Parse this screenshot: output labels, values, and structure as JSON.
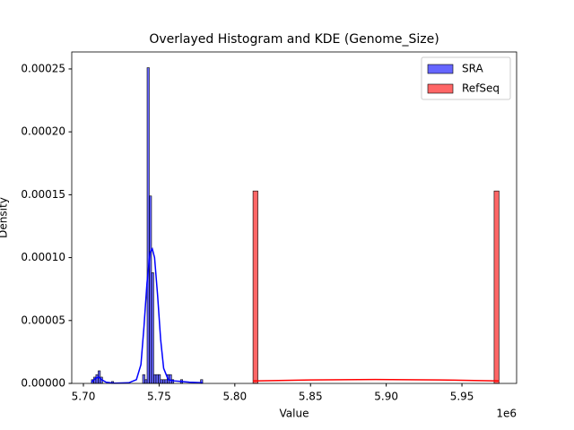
{
  "chart_data": {
    "type": "histogram",
    "title": "Overlayed Histogram and KDE (Genome_Size)",
    "xlabel": "Value",
    "ylabel": "Density",
    "x_offset_label": "1e6",
    "xlim": [
      5692300,
      5986100
    ],
    "ylim": [
      0,
      0.0002635
    ],
    "xticks": [
      {
        "value": 5700000,
        "label": "5.70"
      },
      {
        "value": 5750000,
        "label": "5.75"
      },
      {
        "value": 5800000,
        "label": "5.80"
      },
      {
        "value": 5850000,
        "label": "5.85"
      },
      {
        "value": 5900000,
        "label": "5.90"
      },
      {
        "value": 5950000,
        "label": "5.95"
      }
    ],
    "yticks": [
      {
        "value": 0,
        "label": "0.00000"
      },
      {
        "value": 5e-05,
        "label": "0.00005"
      },
      {
        "value": 0.0001,
        "label": "0.00010"
      },
      {
        "value": 0.00015,
        "label": "0.00015"
      },
      {
        "value": 0.0002,
        "label": "0.00020"
      },
      {
        "value": 0.00025,
        "label": "0.00025"
      }
    ],
    "legend": "upper right",
    "series": [
      {
        "name": "SRA",
        "color": "#0000ff",
        "bins": [
          5705300,
          5706770,
          5708240,
          5709710,
          5711180,
          5712650,
          5714120,
          5715590,
          5717060,
          5718530,
          5720000,
          5721470,
          5722940,
          5724410,
          5725880,
          5727350,
          5728820,
          5730290,
          5731760,
          5733230,
          5734700,
          5736170,
          5737640,
          5739110,
          5740580,
          5742050,
          5743520,
          5744990,
          5746460,
          5747930,
          5749400,
          5750870,
          5752340,
          5753810,
          5755280,
          5756750,
          5758220,
          5759690,
          5761160,
          5762630,
          5764100,
          5765570,
          5767040,
          5768510,
          5769980,
          5771450,
          5772920,
          5774390,
          5775860,
          5777330,
          5778800
        ],
        "values": [
          3e-06,
          5e-06,
          7e-06,
          1e-05,
          5e-06,
          0,
          0,
          0,
          0,
          1.5e-06,
          0,
          0,
          0,
          0,
          0,
          0,
          0,
          0,
          0,
          0,
          0,
          0,
          0,
          7e-06,
          3e-06,
          0.000251,
          0.000149,
          8.8e-05,
          7e-06,
          7e-06,
          7e-06,
          3e-06,
          3e-06,
          3e-06,
          7e-06,
          7e-06,
          3e-06,
          0,
          0,
          0,
          3e-06,
          0,
          0,
          0,
          0,
          0,
          0,
          0,
          0,
          3e-06
        ],
        "kde": {
          "x": [
            5705300,
            5708000,
            5710000,
            5712000,
            5715000,
            5720000,
            5730000,
            5735000,
            5738000,
            5740000,
            5742000,
            5744000,
            5745500,
            5747000,
            5749000,
            5751000,
            5753000,
            5756000,
            5760000,
            5765000,
            5770000,
            5778800
          ],
          "values": [
            1e-06,
            4e-06,
            5e-06,
            3e-06,
            1e-06,
            2e-07,
            5e-07,
            3e-06,
            1.5e-05,
            4.5e-05,
            8e-05,
            0.000104,
            0.000107,
            0.0001,
            7e-05,
            3.5e-05,
            1.2e-05,
            3e-06,
            2e-06,
            1.5e-06,
            1e-06,
            5e-07
          ]
        }
      },
      {
        "name": "RefSeq",
        "color": "#ff0000",
        "bins": [
          5812000,
          5815250,
          5818500,
          5821750,
          5825000,
          5828250,
          5831500,
          5834750,
          5838000,
          5841250,
          5844500,
          5847750,
          5851000,
          5854250,
          5857500,
          5860750,
          5864000,
          5867250,
          5870500,
          5873750,
          5877000,
          5880250,
          5883500,
          5886750,
          5890000,
          5893250,
          5896500,
          5899750,
          5903000,
          5906250,
          5909500,
          5912750,
          5916000,
          5919250,
          5922500,
          5925750,
          5929000,
          5932250,
          5935500,
          5938750,
          5942000,
          5945250,
          5948500,
          5951750,
          5955000,
          5958250,
          5961500,
          5964750,
          5968000,
          5971250,
          5974500
        ],
        "values": [
          0.000153,
          0,
          0,
          0,
          0,
          0,
          0,
          0,
          0,
          0,
          0,
          0,
          0,
          0,
          0,
          0,
          0,
          0,
          0,
          0,
          0,
          0,
          0,
          0,
          0,
          0,
          0,
          0,
          0,
          0,
          0,
          0,
          0,
          0,
          0,
          0,
          0,
          0,
          0,
          0,
          0,
          0,
          0,
          0,
          0,
          0,
          0,
          0,
          0,
          0.000153
        ],
        "kde": {
          "x": [
            5812000,
            5850000,
            5893000,
            5935000,
            5974500
          ],
          "values": [
            2e-06,
            2.8e-06,
            3.1e-06,
            2.8e-06,
            2e-06
          ]
        }
      }
    ]
  }
}
